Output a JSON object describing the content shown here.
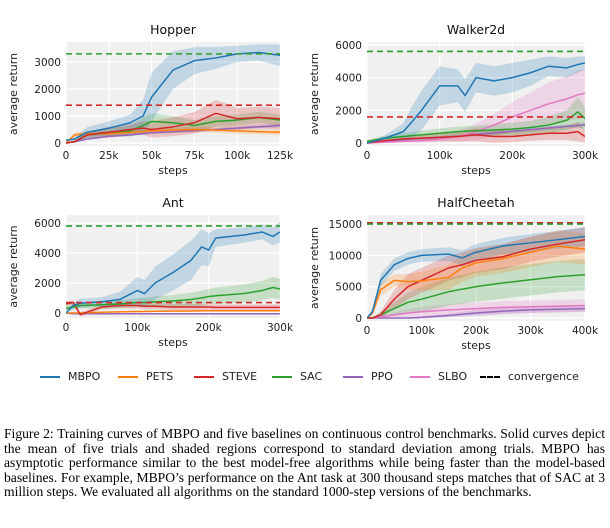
{
  "legend": [
    {
      "label": "MBPO",
      "color": "#1f77b4",
      "style": "solid"
    },
    {
      "label": "PETS",
      "color": "#ff7f0e",
      "style": "solid"
    },
    {
      "label": "STEVE",
      "color": "#d62728",
      "style": "solid"
    },
    {
      "label": "SAC",
      "color": "#2ca02c",
      "style": "solid"
    },
    {
      "label": "PPO",
      "color": "#9467bd",
      "style": "solid"
    },
    {
      "label": "SLBO",
      "color": "#e377c2",
      "style": "solid"
    },
    {
      "label": "convergence",
      "color": "#000000",
      "style": "dashed"
    }
  ],
  "caption": "Figure 2:  Training curves of MBPO and five baselines on continuous control benchmarks. Solid curves depict the mean of five trials and shaded regions correspond to standard deviation among trials. MBPO has asymptotic performance similar to the best model-free algorithms while being faster than the model-based baselines. For example, MBPO’s performance on the Ant task at 300 thousand steps matches that of SAC at 3 million steps. We evaluated all algorithms on the standard 1000-step versions of the benchmarks.",
  "chart_data": [
    {
      "type": "line",
      "title": "Hopper",
      "xlabel": "steps",
      "ylabel": "average return",
      "xlim": [
        0,
        125000
      ],
      "ylim": [
        -110,
        3740
      ],
      "grid": true,
      "background": "#f0f0f0",
      "xticks": [
        0,
        25000,
        50000,
        75000,
        100000,
        125000
      ],
      "xtick_labels": [
        "0",
        "25k",
        "50k",
        "75k",
        "100k",
        "125k"
      ],
      "yticks": [
        0,
        1000,
        2000,
        3000
      ],
      "ytick_labels": [
        "0",
        "1000",
        "2000",
        "3000"
      ],
      "x": [
        0,
        5000,
        12500,
        25000,
        37500,
        45000,
        50000,
        62500,
        75000,
        87500,
        100000,
        112500,
        125000
      ],
      "series": [
        {
          "name": "PPO",
          "color": "#9467bd",
          "mean": [
            0,
            50,
            150,
            250,
            300,
            350,
            380,
            420,
            460,
            500,
            550,
            600,
            650
          ],
          "std": [
            0,
            30,
            40,
            50,
            50,
            50,
            60,
            60,
            60,
            70,
            70,
            80,
            80
          ]
        },
        {
          "name": "PETS",
          "color": "#ff7f0e",
          "mean": [
            0,
            300,
            350,
            350,
            400,
            420,
            450,
            480,
            500,
            480,
            450,
            420,
            400
          ],
          "std": [
            0,
            80,
            80,
            80,
            90,
            90,
            90,
            100,
            100,
            100,
            100,
            100,
            100
          ]
        },
        {
          "name": "SAC",
          "color": "#2ca02c",
          "mean": [
            0,
            50,
            300,
            400,
            450,
            650,
            800,
            750,
            650,
            800,
            850,
            950,
            850
          ],
          "std": [
            0,
            50,
            120,
            150,
            200,
            300,
            300,
            250,
            200,
            200,
            200,
            200,
            200
          ]
        },
        {
          "name": "STEVE",
          "color": "#d62728",
          "mean": [
            0,
            50,
            300,
            400,
            500,
            550,
            500,
            600,
            750,
            1100,
            900,
            950,
            900
          ],
          "std": [
            0,
            50,
            100,
            200,
            200,
            250,
            300,
            350,
            400,
            500,
            400,
            400,
            400
          ]
        },
        {
          "name": "MBPO",
          "color": "#1f77b4",
          "mean": [
            100,
            150,
            400,
            550,
            750,
            1000,
            1700,
            2700,
            3050,
            3150,
            3300,
            3350,
            3250
          ],
          "std": [
            0,
            50,
            200,
            250,
            300,
            600,
            900,
            700,
            500,
            400,
            300,
            300,
            400
          ]
        }
      ],
      "convergence": [
        {
          "series": "SAC",
          "color": "#2ca02c",
          "value": 3300
        },
        {
          "series": "STEVE",
          "color": "#d62728",
          "value": 1400
        }
      ]
    },
    {
      "type": "line",
      "title": "Walker2d",
      "xlabel": "steps",
      "ylabel": "average return",
      "xlim": [
        0,
        300000
      ],
      "ylim": [
        -180,
        6180
      ],
      "grid": true,
      "background": "#f0f0f0",
      "xticks": [
        0,
        100000,
        200000,
        300000
      ],
      "xtick_labels": [
        "0",
        "100k",
        "200k",
        "300k"
      ],
      "yticks": [
        0,
        2000,
        4000,
        6000
      ],
      "ytick_labels": [
        "0",
        "2000",
        "4000",
        "6000"
      ],
      "x": [
        0,
        25000,
        50000,
        60000,
        75000,
        100000,
        125000,
        135000,
        150000,
        175000,
        200000,
        225000,
        250000,
        275000,
        290000,
        300000
      ],
      "series": [
        {
          "name": "PPO",
          "color": "#9467bd",
          "mean": [
            0,
            100,
            200,
            230,
            280,
            350,
            420,
            460,
            520,
            620,
            720,
            820,
            920,
            1020,
            1080,
            1120
          ],
          "std": [
            0,
            50,
            60,
            60,
            70,
            80,
            90,
            90,
            100,
            100,
            110,
            120,
            130,
            140,
            150,
            150
          ]
        },
        {
          "name": "SLBO",
          "color": "#e377c2",
          "mean": [
            0,
            50,
            100,
            120,
            150,
            250,
            400,
            500,
            700,
            1100,
            1600,
            2000,
            2400,
            2700,
            2950,
            3050
          ],
          "std": [
            0,
            50,
            80,
            100,
            150,
            200,
            300,
            400,
            500,
            700,
            900,
            1100,
            1300,
            1400,
            1500,
            1500
          ]
        },
        {
          "name": "STEVE",
          "color": "#d62728",
          "mean": [
            0,
            150,
            250,
            280,
            300,
            350,
            400,
            450,
            500,
            400,
            400,
            500,
            600,
            600,
            700,
            400
          ],
          "std": [
            0,
            100,
            150,
            150,
            200,
            250,
            300,
            350,
            400,
            400,
            350,
            350,
            400,
            400,
            600,
            400
          ]
        },
        {
          "name": "SAC",
          "color": "#2ca02c",
          "mean": [
            100,
            300,
            400,
            450,
            500,
            600,
            700,
            720,
            750,
            800,
            850,
            950,
            1100,
            1400,
            1900,
            1500
          ],
          "std": [
            100,
            150,
            200,
            200,
            250,
            300,
            300,
            300,
            300,
            350,
            400,
            400,
            500,
            600,
            900,
            700
          ]
        },
        {
          "name": "MBPO",
          "color": "#1f77b4",
          "mean": [
            0,
            300,
            700,
            1200,
            2000,
            3500,
            3500,
            2900,
            4000,
            3800,
            4000,
            4300,
            4700,
            4600,
            4800,
            4900
          ],
          "std": [
            0,
            200,
            500,
            900,
            1200,
            1200,
            1000,
            1000,
            900,
            900,
            900,
            800,
            600,
            600,
            500,
            400
          ]
        }
      ],
      "convergence": [
        {
          "series": "SAC",
          "color": "#2ca02c",
          "value": 5600
        },
        {
          "series": "STEVE",
          "color": "#d62728",
          "value": 1600
        }
      ]
    },
    {
      "type": "line",
      "title": "Ant",
      "xlabel": "steps",
      "ylabel": "average return",
      "xlim": [
        0,
        300000
      ],
      "ylim": [
        -330,
        6530
      ],
      "grid": true,
      "background": "#f0f0f0",
      "xticks": [
        0,
        100000,
        200000,
        300000
      ],
      "xtick_labels": [
        "0",
        "100k",
        "200k",
        "300k"
      ],
      "yticks": [
        0,
        2000,
        4000,
        6000
      ],
      "ytick_labels": [
        "0",
        "2000",
        "4000",
        "6000"
      ],
      "x": [
        0,
        10000,
        20000,
        50000,
        75000,
        100000,
        110000,
        125000,
        150000,
        175000,
        190000,
        200000,
        210000,
        250000,
        275000,
        290000,
        300000
      ],
      "series": [
        {
          "name": "PPO",
          "color": "#9467bd",
          "mean": [
            0,
            -50,
            -50,
            -50,
            -50,
            -50,
            -50,
            -50,
            -50,
            -50,
            -50,
            -50,
            -50,
            -50,
            -50,
            -50,
            -50
          ],
          "std": [
            0,
            30,
            30,
            30,
            30,
            30,
            30,
            30,
            30,
            30,
            30,
            30,
            30,
            30,
            30,
            30,
            30
          ]
        },
        {
          "name": "PETS",
          "color": "#ff7f0e",
          "mean": [
            0,
            0,
            0,
            50,
            80,
            100,
            100,
            120,
            130,
            140,
            150,
            150,
            150,
            150,
            150,
            150,
            150
          ],
          "std": [
            0,
            30,
            30,
            40,
            40,
            50,
            50,
            50,
            50,
            50,
            50,
            50,
            50,
            50,
            50,
            50,
            50
          ]
        },
        {
          "name": "STEVE",
          "color": "#d62728",
          "mean": [
            600,
            700,
            -100,
            400,
            500,
            500,
            450,
            450,
            400,
            400,
            400,
            400,
            380,
            380,
            380,
            380,
            380
          ],
          "std": [
            100,
            150,
            150,
            150,
            200,
            200,
            200,
            200,
            200,
            200,
            200,
            200,
            200,
            200,
            200,
            200,
            200
          ]
        },
        {
          "name": "SAC",
          "color": "#2ca02c",
          "mean": [
            300,
            400,
            500,
            550,
            600,
            700,
            700,
            750,
            800,
            900,
            1000,
            1100,
            1150,
            1300,
            1500,
            1700,
            1600
          ],
          "std": [
            200,
            200,
            200,
            250,
            250,
            300,
            300,
            350,
            400,
            450,
            500,
            500,
            550,
            600,
            650,
            700,
            700
          ]
        },
        {
          "name": "MBPO",
          "color": "#1f77b4",
          "mean": [
            0,
            500,
            650,
            750,
            900,
            1500,
            1300,
            2000,
            2700,
            3500,
            4400,
            4200,
            5000,
            5200,
            5400,
            5100,
            5400
          ],
          "std": [
            0,
            200,
            300,
            300,
            500,
            900,
            900,
            1100,
            1200,
            1300,
            1200,
            1100,
            600,
            500,
            500,
            600,
            700
          ]
        }
      ],
      "convergence": [
        {
          "series": "SAC",
          "color": "#2ca02c",
          "value": 5800
        },
        {
          "series": "STEVE",
          "color": "#d62728",
          "value": 700
        }
      ]
    },
    {
      "type": "line",
      "title": "HalfCheetah",
      "xlabel": "steps",
      "ylabel": "average return",
      "xlim": [
        0,
        400000
      ],
      "ylim": [
        -480,
        16440
      ],
      "grid": true,
      "background": "#f0f0f0",
      "xticks": [
        0,
        100000,
        200000,
        300000,
        400000
      ],
      "xtick_labels": [
        "0",
        "100k",
        "200k",
        "300k",
        "400k"
      ],
      "yticks": [
        0,
        5000,
        10000,
        15000
      ],
      "ytick_labels": [
        "0",
        "5000",
        "10000",
        "15000"
      ],
      "x": [
        0,
        10000,
        25000,
        50000,
        75000,
        100000,
        150000,
        175000,
        200000,
        250000,
        300000,
        350000,
        400000
      ],
      "series": [
        {
          "name": "PPO",
          "color": "#9467bd",
          "mean": [
            0,
            0,
            0,
            0,
            0,
            100,
            400,
            600,
            800,
            1100,
            1300,
            1400,
            1500
          ],
          "std": [
            0,
            0,
            0,
            0,
            100,
            200,
            300,
            400,
            500,
            500,
            500,
            500,
            500
          ]
        },
        {
          "name": "SLBO",
          "color": "#e377c2",
          "mean": [
            0,
            0,
            200,
            500,
            800,
            1000,
            1300,
            1400,
            1500,
            1700,
            1800,
            1900,
            2000
          ],
          "std": [
            0,
            0,
            200,
            400,
            600,
            800,
            900,
            1000,
            1000,
            1000,
            1000,
            1000,
            1000
          ]
        },
        {
          "name": "SAC",
          "color": "#2ca02c",
          "mean": [
            0,
            0,
            500,
            1500,
            2500,
            3000,
            4200,
            4600,
            5000,
            5600,
            6100,
            6600,
            6900
          ],
          "std": [
            0,
            0,
            500,
            1000,
            1500,
            2000,
            2200,
            2300,
            2400,
            2500,
            2500,
            2500,
            2500
          ]
        },
        {
          "name": "STEVE",
          "color": "#d62728",
          "mean": [
            0,
            0,
            500,
            3000,
            5000,
            6000,
            8000,
            8500,
            9200,
            9800,
            11000,
            11800,
            12500
          ],
          "std": [
            0,
            0,
            500,
            1500,
            2000,
            2000,
            2000,
            2000,
            2000,
            2000,
            2000,
            2000,
            2000
          ]
        },
        {
          "name": "PETS",
          "color": "#ff7f0e",
          "mean": [
            0,
            800,
            4500,
            6000,
            5800,
            5900,
            6500,
            8000,
            8800,
            9500,
            10500,
            11500,
            11000
          ],
          "std": [
            0,
            400,
            1000,
            1000,
            1200,
            1500,
            2000,
            2200,
            2200,
            2300,
            2400,
            2500,
            2500
          ]
        },
        {
          "name": "MBPO",
          "color": "#1f77b4",
          "mean": [
            0,
            1000,
            6000,
            8500,
            9500,
            10000,
            10200,
            9600,
            10500,
            11500,
            12000,
            12500,
            13000
          ],
          "std": [
            0,
            400,
            1000,
            1000,
            1000,
            1000,
            1100,
            1200,
            1300,
            1300,
            1400,
            1400,
            1500
          ]
        }
      ],
      "convergence": [
        {
          "series": "STEVE",
          "color": "#d62728",
          "value": 15200
        },
        {
          "series": "SAC",
          "color": "#2ca02c",
          "value": 15000
        }
      ]
    }
  ]
}
